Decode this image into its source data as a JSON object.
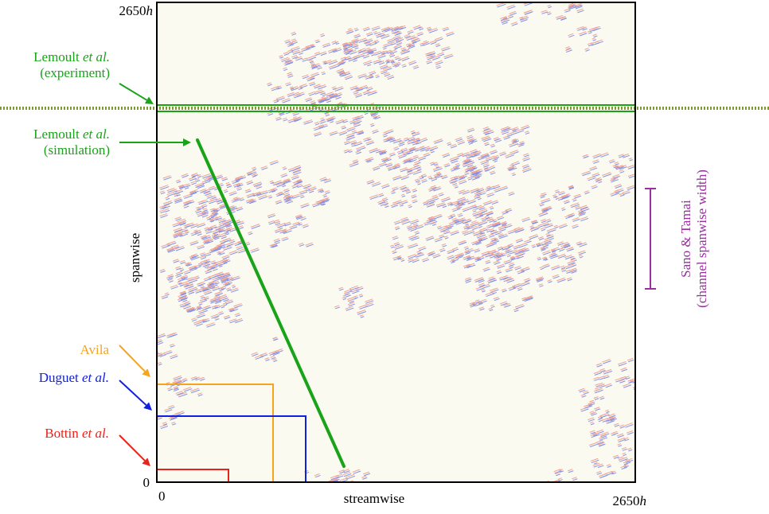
{
  "colors": {
    "background": "#fbfaf0",
    "frame": "#000000",
    "green": "#19a319",
    "orange": "#f6a41c",
    "blue": "#1020e0",
    "red": "#e8231b",
    "purple": "#9a2fa0",
    "streak_red": "#f0a090",
    "streak_blue": "#8090e8",
    "dotted": "#7f9a30"
  },
  "axes": {
    "x_label": "streamwise",
    "y_label": "spanwise",
    "x_min": "0",
    "x_max_num": "2650",
    "x_max_unit": "h",
    "y_min": "0",
    "y_max_num": "2650",
    "y_max_unit": "h"
  },
  "labels": {
    "lemoult_exp": {
      "name": "Lemoult ",
      "etal": "et al.",
      "note": "(experiment)"
    },
    "lemoult_sim": {
      "name": "Lemoult ",
      "etal": "et al.",
      "note": "(simulation)"
    },
    "avila": {
      "name": "Avila"
    },
    "duguet": {
      "name": "Duguet ",
      "etal": "et al."
    },
    "bottin": {
      "name": "Bottin ",
      "etal": "et al."
    },
    "sano": {
      "line1": "Sano & Tamai",
      "line2": "(channel spanwise width)"
    }
  }
}
